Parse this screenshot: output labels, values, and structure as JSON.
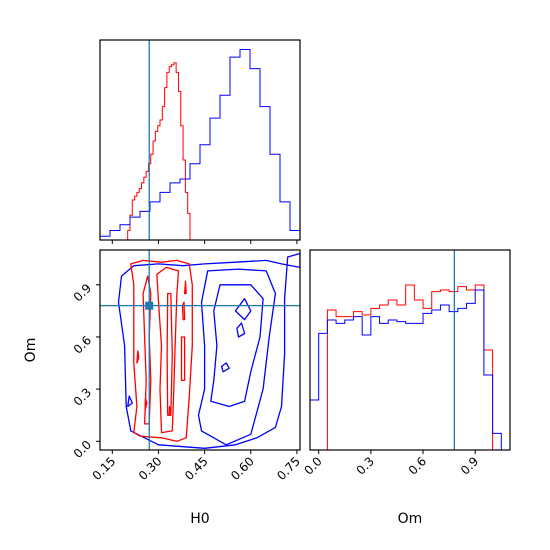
{
  "chart_data": {
    "type": "corner",
    "parameters": [
      "H0",
      "Om"
    ],
    "truths": {
      "H0": 0.27,
      "Om": 0.78
    },
    "colors": {
      "red": "#ff0000",
      "blue": "#0000ff",
      "truth": "#1f77b4"
    },
    "axes": {
      "H0": {
        "label": "H0",
        "range": [
          0.11,
          0.76
        ],
        "ticks": [
          "0.15",
          "0.30",
          "0.45",
          "0.60",
          "0.75"
        ]
      },
      "Om": {
        "label": "Om",
        "range": [
          -0.05,
          1.1
        ],
        "ticks": [
          "0.0",
          "0.3",
          "0.6",
          "0.9"
        ]
      }
    },
    "hist_H0": {
      "edges": [
        0.11,
        0.1425,
        0.175,
        0.2075,
        0.24,
        0.2725,
        0.305,
        0.3375,
        0.37,
        0.4025,
        0.435,
        0.4675,
        0.5,
        0.5325,
        0.565,
        0.5975,
        0.63,
        0.6625,
        0.695,
        0.7275,
        0.76
      ],
      "red": {
        "edges": [
          0.2,
          0.2075,
          0.215,
          0.2225,
          0.23,
          0.2375,
          0.245,
          0.2525,
          0.26,
          0.2675,
          0.275,
          0.2825,
          0.29,
          0.2975,
          0.305,
          0.3125,
          0.32,
          0.3275,
          0.335,
          0.3425,
          0.35,
          0.3575,
          0.365,
          0.3725,
          0.38,
          0.3875,
          0.395,
          0.4025,
          0.41
        ],
        "counts": [
          5,
          13,
          21,
          23,
          25,
          27,
          30,
          33,
          36,
          40,
          45,
          52,
          57,
          60,
          63,
          70,
          80,
          88,
          91,
          92,
          93,
          88,
          78,
          60,
          42,
          25,
          14,
          0
        ]
      },
      "blue": {
        "counts": [
          2,
          5,
          8,
          12,
          15,
          20,
          25,
          30,
          32,
          40,
          50,
          64,
          76,
          96,
          100,
          90,
          70,
          45,
          20,
          5
        ]
      }
    },
    "hist_Om": {
      "edges": [
        -0.05,
        0.0,
        0.05,
        0.1,
        0.15,
        0.2,
        0.25,
        0.3,
        0.35,
        0.4,
        0.45,
        0.5,
        0.55,
        0.6,
        0.65,
        0.7,
        0.75,
        0.8,
        0.85,
        0.9,
        0.95,
        1.0,
        1.05,
        1.1
      ],
      "red": [
        0,
        0,
        84,
        80,
        80,
        83,
        81,
        85,
        87,
        90,
        87,
        99,
        90,
        85,
        95,
        96,
        95,
        98,
        96,
        99,
        60,
        0,
        0
      ],
      "blue": [
        30,
        70,
        78,
        76,
        78,
        80,
        69,
        80,
        76,
        78,
        77,
        76,
        76,
        82,
        84,
        87,
        83,
        85,
        88,
        96,
        45,
        10,
        0
      ]
    },
    "contours": {
      "red": [
        [
          [
            0.24,
            0.03
          ],
          [
            0.31,
            0.02
          ],
          [
            0.36,
            0.0
          ],
          [
            0.39,
            0.02
          ],
          [
            0.4,
            0.25
          ],
          [
            0.41,
            0.55
          ],
          [
            0.41,
            0.9
          ],
          [
            0.4,
            1.02
          ],
          [
            0.36,
            1.04
          ],
          [
            0.31,
            1.03
          ],
          [
            0.25,
            1.04
          ],
          [
            0.21,
            1.02
          ],
          [
            0.22,
            0.9
          ],
          [
            0.22,
            0.45
          ],
          [
            0.23,
            0.2
          ],
          [
            0.22,
            0.05
          ]
        ],
        [
          [
            0.255,
            0.1
          ],
          [
            0.27,
            0.1
          ],
          [
            0.275,
            0.35
          ],
          [
            0.27,
            0.6
          ],
          [
            0.275,
            0.85
          ],
          [
            0.265,
            0.95
          ],
          [
            0.25,
            0.85
          ],
          [
            0.255,
            0.6
          ],
          [
            0.26,
            0.35
          ]
        ],
        [
          [
            0.31,
            0.05
          ],
          [
            0.345,
            0.06
          ],
          [
            0.35,
            0.3
          ],
          [
            0.355,
            0.6
          ],
          [
            0.36,
            0.85
          ],
          [
            0.365,
            0.98
          ],
          [
            0.325,
            1.0
          ],
          [
            0.295,
            0.96
          ],
          [
            0.3,
            0.8
          ],
          [
            0.31,
            0.55
          ],
          [
            0.305,
            0.3
          ]
        ],
        [
          [
            0.33,
            0.15
          ],
          [
            0.34,
            0.15
          ],
          [
            0.345,
            0.5
          ],
          [
            0.34,
            0.85
          ],
          [
            0.33,
            0.85
          ],
          [
            0.328,
            0.5
          ]
        ],
        [
          [
            0.375,
            0.35
          ],
          [
            0.385,
            0.35
          ],
          [
            0.385,
            0.6
          ],
          [
            0.375,
            0.6
          ]
        ],
        [
          [
            0.38,
            0.7
          ],
          [
            0.385,
            0.7
          ],
          [
            0.383,
            0.8
          ],
          [
            0.378,
            0.78
          ]
        ],
        [
          [
            0.385,
            0.85
          ],
          [
            0.39,
            0.85
          ],
          [
            0.388,
            0.92
          ]
        ],
        [
          [
            0.257,
            0.18
          ],
          [
            0.262,
            0.22
          ],
          [
            0.258,
            0.25
          ]
        ],
        [
          [
            0.335,
            0.15
          ],
          [
            0.34,
            0.17
          ],
          [
            0.336,
            0.2
          ]
        ],
        [
          [
            0.23,
            0.45
          ],
          [
            0.236,
            0.48
          ],
          [
            0.233,
            0.52
          ]
        ]
      ],
      "blue": [
        [
          [
            0.21,
            0.06
          ],
          [
            0.3,
            -0.02
          ],
          [
            0.45,
            -0.04
          ],
          [
            0.55,
            -0.02
          ],
          [
            0.62,
            0.02
          ],
          [
            0.68,
            0.08
          ],
          [
            0.7,
            0.2
          ],
          [
            0.71,
            0.5
          ],
          [
            0.71,
            0.82
          ],
          [
            0.72,
            1.06
          ],
          [
            0.76,
            1.08
          ],
          [
            0.76,
            1.0
          ],
          [
            0.7,
            1.02
          ],
          [
            0.65,
            1.04
          ],
          [
            0.55,
            1.03
          ],
          [
            0.45,
            1.02
          ],
          [
            0.38,
            1.01
          ],
          [
            0.3,
            1.02
          ],
          [
            0.22,
            1.01
          ],
          [
            0.18,
            0.95
          ],
          [
            0.17,
            0.8
          ],
          [
            0.19,
            0.55
          ],
          [
            0.195,
            0.2
          ]
        ],
        [
          [
            0.44,
            0.06
          ],
          [
            0.52,
            -0.02
          ],
          [
            0.6,
            0.04
          ],
          [
            0.64,
            0.3
          ],
          [
            0.66,
            0.6
          ],
          [
            0.68,
            0.85
          ],
          [
            0.65,
            0.98
          ],
          [
            0.56,
            0.99
          ],
          [
            0.46,
            0.98
          ],
          [
            0.44,
            0.8
          ],
          [
            0.45,
            0.55
          ],
          [
            0.45,
            0.3
          ],
          [
            0.43,
            0.15
          ]
        ],
        [
          [
            0.47,
            0.23
          ],
          [
            0.53,
            0.2
          ],
          [
            0.58,
            0.23
          ],
          [
            0.6,
            0.4
          ],
          [
            0.63,
            0.6
          ],
          [
            0.64,
            0.82
          ],
          [
            0.6,
            0.9
          ],
          [
            0.5,
            0.9
          ],
          [
            0.48,
            0.75
          ],
          [
            0.49,
            0.55
          ],
          [
            0.48,
            0.35
          ]
        ],
        [
          [
            0.55,
            0.75
          ],
          [
            0.58,
            0.7
          ],
          [
            0.6,
            0.75
          ],
          [
            0.58,
            0.82
          ]
        ],
        [
          [
            0.56,
            0.6
          ],
          [
            0.58,
            0.62
          ],
          [
            0.57,
            0.68
          ],
          [
            0.555,
            0.65
          ]
        ],
        [
          [
            0.51,
            0.4
          ],
          [
            0.53,
            0.42
          ],
          [
            0.52,
            0.45
          ],
          [
            0.505,
            0.43
          ]
        ],
        [
          [
            0.2,
            0.2
          ],
          [
            0.215,
            0.22
          ],
          [
            0.205,
            0.26
          ]
        ]
      ]
    }
  }
}
